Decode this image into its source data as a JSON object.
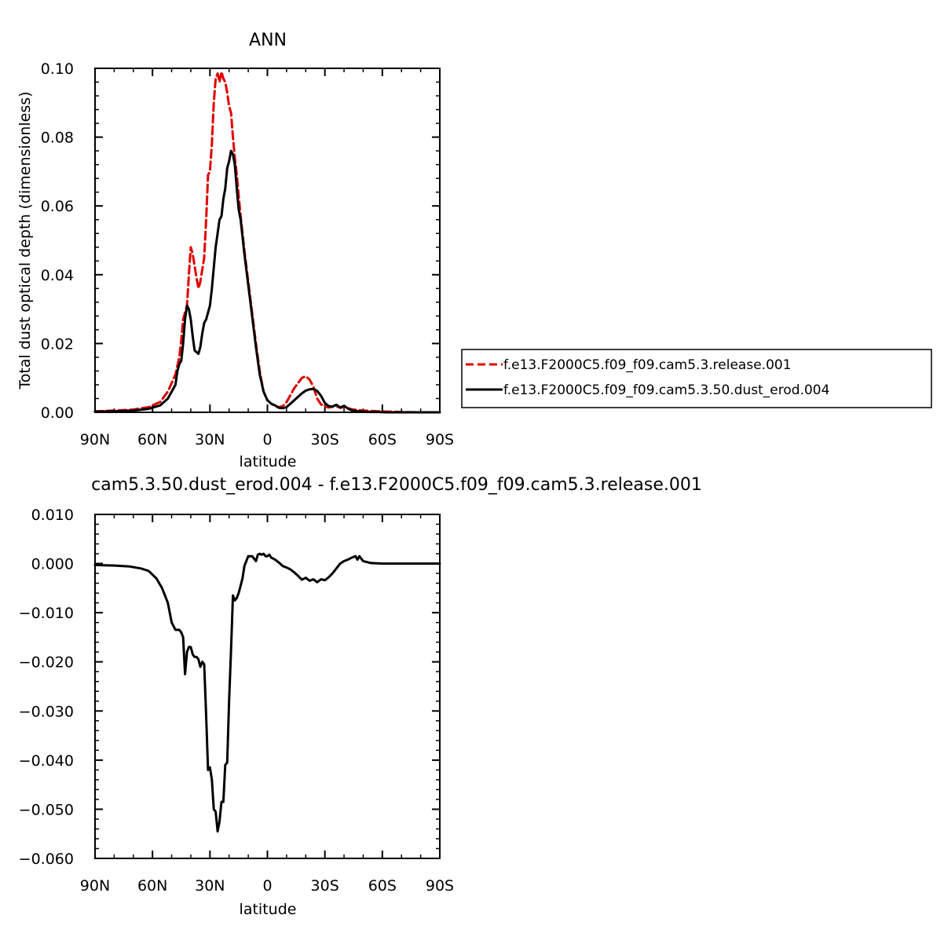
{
  "chart_data": [
    {
      "type": "line",
      "title": "ANN",
      "xlabel": "latitude",
      "ylabel": "Total dust optical depth (dimensionless)",
      "xlim": [
        90,
        -90
      ],
      "ylim": [
        0,
        0.1
      ],
      "x_ticks": [
        90,
        60,
        30,
        0,
        -30,
        -60,
        -90
      ],
      "x_tick_labels": [
        "90N",
        "60N",
        "30N",
        "0",
        "30S",
        "60S",
        "90S"
      ],
      "y_ticks": [
        0,
        0.02,
        0.04,
        0.06,
        0.08,
        0.1
      ],
      "y_tick_labels": [
        "0.00",
        "0.02",
        "0.04",
        "0.06",
        "0.08",
        "0.10"
      ],
      "legend_position": "right",
      "series": [
        {
          "name": "f.e13.F2000C5.f09_f09.cam5.3.release.001",
          "color": "#e00000",
          "dash": "dashed",
          "x": [
            90,
            80,
            70,
            62,
            56,
            52,
            48,
            46,
            45,
            44,
            42,
            41,
            40,
            39,
            37,
            36,
            35,
            33,
            32,
            31,
            30,
            29,
            28,
            27,
            26,
            25,
            24,
            23,
            22,
            21,
            20,
            19,
            18,
            17,
            16,
            15,
            14,
            12,
            10,
            8,
            6,
            4,
            2,
            0,
            -2,
            -4,
            -6,
            -8,
            -10,
            -12,
            -14,
            -16,
            -18,
            -20,
            -22,
            -24,
            -26,
            -28,
            -30,
            -32,
            -34,
            -36,
            -38,
            -40,
            -42,
            -44,
            -46,
            -48,
            -50,
            -54,
            -58,
            -62,
            -70,
            -80,
            -90
          ],
          "y": [
            0.0003,
            0.0005,
            0.0008,
            0.0015,
            0.003,
            0.006,
            0.011,
            0.016,
            0.021,
            0.027,
            0.031,
            0.04,
            0.048,
            0.046,
            0.039,
            0.036,
            0.038,
            0.045,
            0.056,
            0.069,
            0.07,
            0.078,
            0.09,
            0.097,
            0.0985,
            0.096,
            0.099,
            0.097,
            0.096,
            0.093,
            0.089,
            0.087,
            0.08,
            0.074,
            0.069,
            0.063,
            0.057,
            0.047,
            0.038,
            0.029,
            0.02,
            0.012,
            0.006,
            0.0035,
            0.0025,
            0.0018,
            0.0015,
            0.0018,
            0.003,
            0.005,
            0.007,
            0.0085,
            0.01,
            0.0105,
            0.0095,
            0.0075,
            0.004,
            0.0023,
            0.0017,
            0.0014,
            0.0016,
            0.0018,
            0.0013,
            0.0015,
            0.0012,
            0.0009,
            0.0007,
            0.0006,
            0.0005,
            0.0004,
            0.0003,
            0.0002,
            0.0001,
            0.0,
            0.0
          ]
        },
        {
          "name": "f.e13.F2000C5.f09_f09.cam5.3.50.dust_erod.004",
          "color": "#000000",
          "dash": "solid",
          "x": [
            90,
            80,
            70,
            62,
            56,
            52,
            48,
            47,
            46,
            45,
            44,
            43,
            42,
            41,
            40,
            39,
            38,
            36,
            35,
            34,
            33,
            32,
            31,
            30,
            29,
            28,
            27,
            26,
            25,
            24,
            23,
            22,
            21,
            20,
            19,
            18,
            17,
            16,
            15,
            14,
            12,
            10,
            8,
            6,
            4,
            2,
            0,
            -2,
            -4,
            -6,
            -8,
            -10,
            -12,
            -14,
            -16,
            -18,
            -20,
            -22,
            -24,
            -26,
            -28,
            -30,
            -32,
            -34,
            -36,
            -38,
            -40,
            -42,
            -44,
            -46,
            -48,
            -50,
            -54,
            -58,
            -62,
            -70,
            -80,
            -90
          ],
          "y": [
            0.0002,
            0.0003,
            0.0005,
            0.001,
            0.002,
            0.004,
            0.008,
            0.012,
            0.014,
            0.015,
            0.02,
            0.027,
            0.031,
            0.03,
            0.027,
            0.022,
            0.018,
            0.017,
            0.019,
            0.023,
            0.026,
            0.027,
            0.029,
            0.031,
            0.036,
            0.042,
            0.048,
            0.052,
            0.056,
            0.057,
            0.062,
            0.065,
            0.071,
            0.073,
            0.076,
            0.075,
            0.072,
            0.065,
            0.059,
            0.056,
            0.046,
            0.037,
            0.028,
            0.019,
            0.011,
            0.006,
            0.0035,
            0.0025,
            0.002,
            0.0013,
            0.0012,
            0.0015,
            0.0025,
            0.0035,
            0.0045,
            0.0055,
            0.0063,
            0.0067,
            0.0068,
            0.0062,
            0.0048,
            0.0027,
            0.0018,
            0.0017,
            0.0022,
            0.0014,
            0.0019,
            0.0011,
            0.0006,
            0.0004,
            0.0003,
            0.0002,
            0.0001,
            0.0001,
            0.0,
            0.0,
            0.0,
            0.0
          ]
        }
      ]
    },
    {
      "type": "line",
      "title": "cam5.3.50.dust_erod.004 - f.e13.F2000C5.f09_f09.cam5.3.release.001",
      "xlabel": "latitude",
      "ylabel": "",
      "xlim": [
        90,
        -90
      ],
      "ylim": [
        -0.06,
        0.01
      ],
      "x_ticks": [
        90,
        60,
        30,
        0,
        -30,
        -60,
        -90
      ],
      "x_tick_labels": [
        "90N",
        "60N",
        "30N",
        "0",
        "30S",
        "60S",
        "90S"
      ],
      "y_ticks": [
        0.01,
        0,
        -0.01,
        -0.02,
        -0.03,
        -0.04,
        -0.05,
        -0.06
      ],
      "y_tick_labels": [
        "0.010",
        "0.000",
        "−0.010",
        "−0.020",
        "−0.030",
        "−0.040",
        "−0.050",
        "−0.060"
      ],
      "series": [
        {
          "color": "#000000",
          "dash": "solid",
          "x": [
            90,
            80,
            72,
            66,
            62,
            58,
            55,
            52,
            50,
            48,
            46,
            45,
            44,
            43,
            42,
            41,
            40,
            39,
            38,
            37,
            36,
            35,
            34,
            33,
            32,
            31,
            30,
            29,
            28,
            27,
            26,
            25,
            24,
            23,
            22,
            21,
            20,
            19,
            18,
            17,
            16,
            15,
            14,
            13,
            12,
            10,
            8,
            6,
            5,
            4,
            3,
            2,
            1,
            0,
            -1,
            -2,
            -4,
            -6,
            -8,
            -10,
            -12,
            -14,
            -16,
            -18,
            -20,
            -22,
            -24,
            -26,
            -28,
            -30,
            -32,
            -34,
            -36,
            -38,
            -40,
            -42,
            -44,
            -46,
            -47,
            -48,
            -50,
            -54,
            -60,
            -70,
            -80,
            -90
          ],
          "y": [
            -0.0003,
            -0.0004,
            -0.0006,
            -0.001,
            -0.0015,
            -0.003,
            -0.005,
            -0.008,
            -0.012,
            -0.0135,
            -0.0135,
            -0.014,
            -0.015,
            -0.0225,
            -0.018,
            -0.017,
            -0.017,
            -0.0185,
            -0.019,
            -0.019,
            -0.0195,
            -0.021,
            -0.02,
            -0.0205,
            -0.031,
            -0.042,
            -0.0415,
            -0.044,
            -0.05,
            -0.0505,
            -0.0545,
            -0.0525,
            -0.0485,
            -0.0485,
            -0.041,
            -0.0405,
            -0.028,
            -0.0175,
            -0.0065,
            -0.0075,
            -0.007,
            -0.006,
            -0.0045,
            -0.003,
            -0.0005,
            0.0015,
            0.0015,
            0.0005,
            0.0018,
            0.002,
            0.0018,
            0.002,
            0.0015,
            0.0015,
            0.0018,
            0.0012,
            0.0008,
            0.0002,
            -0.0005,
            -0.0008,
            -0.0012,
            -0.0018,
            -0.0025,
            -0.0033,
            -0.0029,
            -0.0035,
            -0.0032,
            -0.0038,
            -0.0032,
            -0.0034,
            -0.0028,
            -0.002,
            -0.001,
            0.0,
            0.0005,
            0.0008,
            0.0012,
            0.0015,
            0.0008,
            0.0015,
            0.0005,
            0.0001,
            0.0,
            0.0,
            0.0,
            0.0
          ]
        }
      ]
    }
  ]
}
